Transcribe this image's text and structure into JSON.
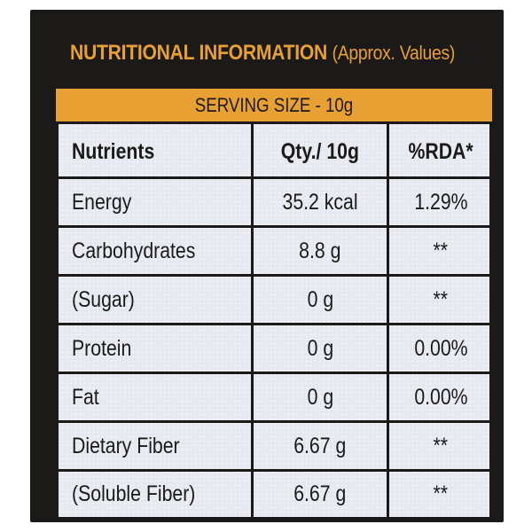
{
  "header": {
    "title": "NUTRITIONAL INFORMATION",
    "subtitle": "(Approx. Values)"
  },
  "serving": {
    "label": "SERVING SIZE - 10g"
  },
  "table": {
    "columns": [
      "Nutrients",
      "Qty./ 10g",
      "%RDA*"
    ],
    "rows": [
      {
        "nutrient": "Energy",
        "qty": "35.2 kcal",
        "rda": "1.29%"
      },
      {
        "nutrient": "Carbohydrates",
        "qty": "8.8 g",
        "rda": "**"
      },
      {
        "nutrient": "(Sugar)",
        "qty": "0 g",
        "rda": "**"
      },
      {
        "nutrient": "Protein",
        "qty": "0 g",
        "rda": "0.00%"
      },
      {
        "nutrient": "Fat",
        "qty": "0 g",
        "rda": "0.00%"
      },
      {
        "nutrient": "Dietary Fiber",
        "qty": "6.67 g",
        "rda": "**"
      },
      {
        "nutrient": "(Soluble Fiber)",
        "qty": "6.67 g",
        "rda": "**"
      }
    ]
  },
  "colors": {
    "frame": "#1c1a19",
    "accent": "#e8a033",
    "cell_bg": "#e6e9ef"
  }
}
